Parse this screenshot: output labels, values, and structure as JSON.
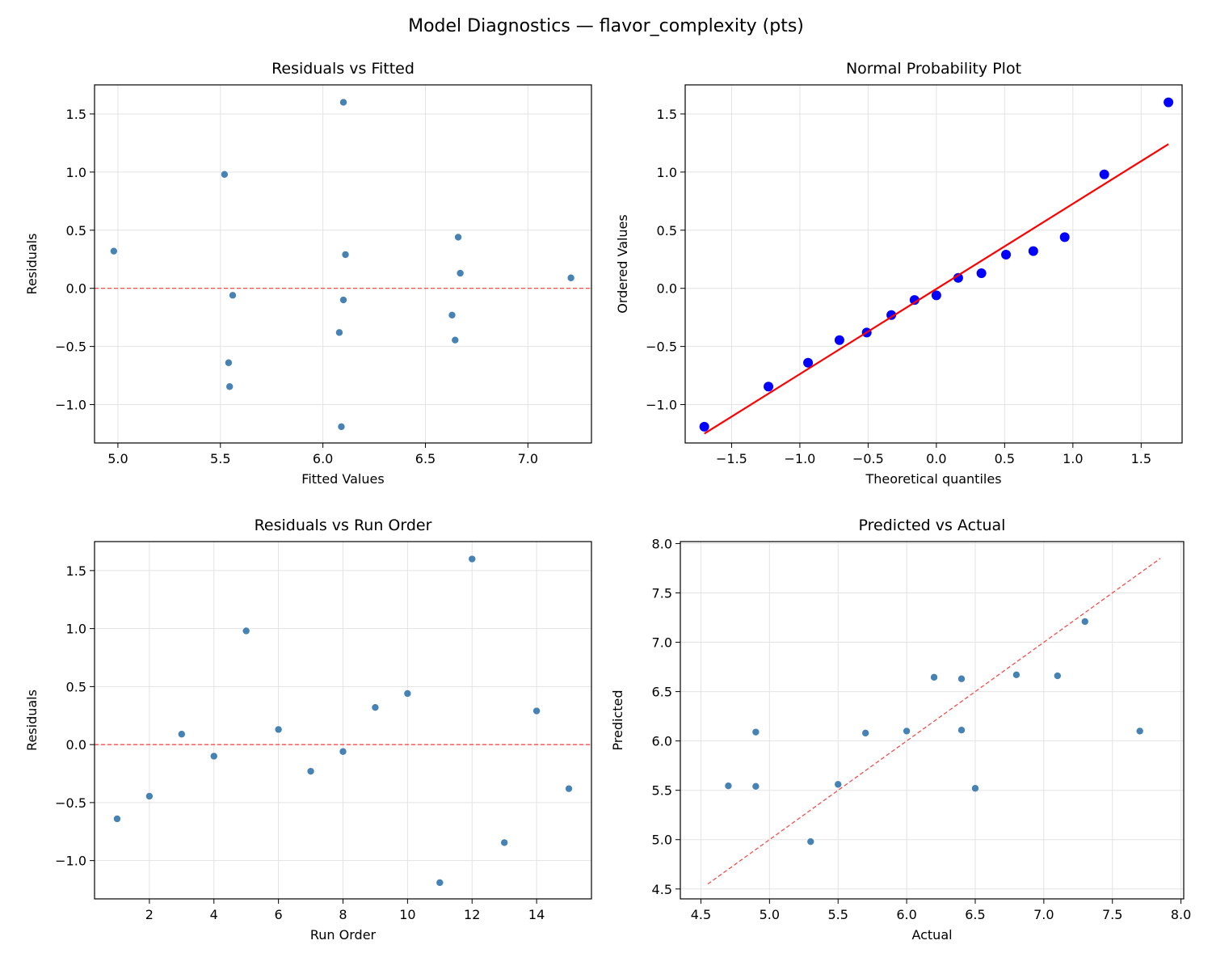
{
  "suptitle": "Model Diagnostics — flavor_complexity (pts)",
  "colors": {
    "points": "#4682b4",
    "qq_points": "#0000ff",
    "ref_line": "#ff0000",
    "grid": "#e3e3e3"
  },
  "chart_data": [
    {
      "type": "scatter",
      "title": "Residuals vs Fitted",
      "xlabel": "Fitted Values",
      "ylabel": "Residuals",
      "xlim": [
        4.886,
        7.31
      ],
      "ylim": [
        -1.33,
        1.75
      ],
      "xticks": [
        5.0,
        5.5,
        6.0,
        6.5,
        7.0
      ],
      "yticks": [
        -1.0,
        -0.5,
        0.0,
        0.5,
        1.0,
        1.5
      ],
      "grid": true,
      "x": [
        5.54,
        6.645,
        7.21,
        6.1,
        5.52,
        6.67,
        6.63,
        5.56,
        4.98,
        6.66,
        6.09,
        6.1,
        5.545,
        6.11,
        6.08
      ],
      "y": [
        -0.64,
        -0.445,
        0.09,
        -0.1,
        0.98,
        0.13,
        -0.23,
        -0.06,
        0.32,
        0.44,
        -1.19,
        1.6,
        -0.845,
        0.29,
        -0.38
      ],
      "hline": 0
    },
    {
      "type": "scatter",
      "title": "Normal Probability Plot",
      "xlabel": "Theoretical quantiles",
      "ylabel": "Ordered Values",
      "xlim": [
        -1.84,
        1.8
      ],
      "ylim": [
        -1.33,
        1.75
      ],
      "xticks": [
        -1.5,
        -1.0,
        -0.5,
        0.0,
        0.5,
        1.0,
        1.5
      ],
      "yticks": [
        -1.0,
        -0.5,
        0.0,
        0.5,
        1.0,
        1.5
      ],
      "grid": true,
      "x": [
        -1.7,
        -1.23,
        -0.94,
        -0.71,
        -0.51,
        -0.33,
        -0.16,
        0.0,
        0.16,
        0.33,
        0.51,
        0.71,
        0.94,
        1.23,
        1.7
      ],
      "y": [
        -1.19,
        -0.845,
        -0.64,
        -0.445,
        -0.38,
        -0.23,
        -0.1,
        -0.06,
        0.09,
        0.13,
        0.29,
        0.32,
        0.44,
        0.98,
        1.6
      ],
      "fit_line": {
        "x": [
          -1.7,
          1.7
        ],
        "y": [
          -1.25,
          1.24
        ]
      }
    },
    {
      "type": "scatter",
      "title": "Residuals vs Run Order",
      "xlabel": "Run Order",
      "ylabel": "Residuals",
      "xlim": [
        0.3,
        15.7
      ],
      "ylim": [
        -1.33,
        1.75
      ],
      "xticks": [
        2,
        4,
        6,
        8,
        10,
        12,
        14
      ],
      "yticks": [
        -1.0,
        -0.5,
        0.0,
        0.5,
        1.0,
        1.5
      ],
      "grid": true,
      "x": [
        1,
        2,
        3,
        4,
        5,
        6,
        7,
        8,
        9,
        10,
        11,
        12,
        13,
        14,
        15
      ],
      "y": [
        -0.64,
        -0.445,
        0.09,
        -0.1,
        0.98,
        0.13,
        -0.23,
        -0.06,
        0.32,
        0.44,
        -1.19,
        1.6,
        -0.845,
        0.29,
        -0.38
      ],
      "hline": 0
    },
    {
      "type": "scatter",
      "title": "Predicted vs Actual",
      "xlabel": "Actual",
      "ylabel": "Predicted",
      "xlim": [
        4.35,
        8.02
      ],
      "ylim": [
        4.4,
        8.02
      ],
      "xticks": [
        4.5,
        5.0,
        5.5,
        6.0,
        6.5,
        7.0,
        7.5,
        8.0
      ],
      "yticks": [
        4.5,
        5.0,
        5.5,
        6.0,
        6.5,
        7.0,
        7.5,
        8.0
      ],
      "grid": true,
      "x": [
        4.9,
        6.2,
        7.3,
        6.0,
        6.5,
        6.8,
        6.4,
        5.5,
        5.3,
        7.1,
        4.9,
        7.7,
        4.7,
        6.4,
        5.7
      ],
      "y": [
        5.54,
        6.645,
        7.21,
        6.1,
        5.52,
        6.67,
        6.63,
        5.56,
        4.98,
        6.66,
        6.09,
        6.1,
        5.545,
        6.11,
        6.08
      ],
      "diag_line": {
        "x": [
          4.55,
          7.85
        ],
        "y": [
          4.55,
          7.85
        ]
      }
    }
  ]
}
